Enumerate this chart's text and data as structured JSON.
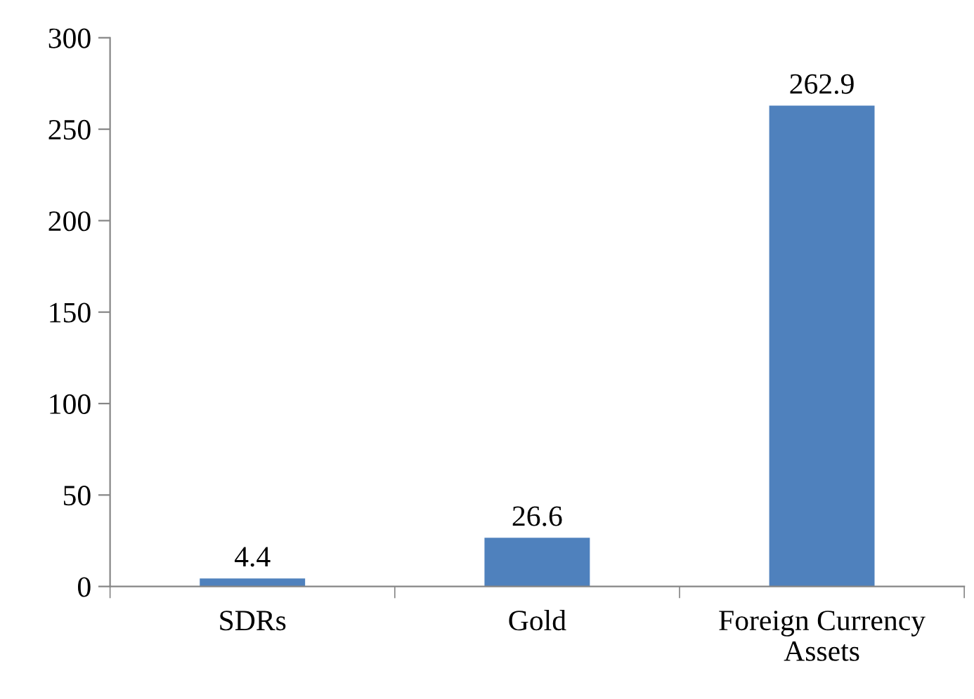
{
  "chart_data": {
    "type": "bar",
    "categories": [
      "SDRs",
      "Gold",
      "Foreign Currency\nAssets"
    ],
    "values": [
      4.4,
      26.6,
      262.9
    ],
    "color": "#4f81bd",
    "ylim": [
      0,
      300
    ],
    "yticks": [
      0,
      50,
      100,
      150,
      200,
      250,
      300
    ],
    "data_labels": true,
    "grid": false,
    "legend": false
  }
}
